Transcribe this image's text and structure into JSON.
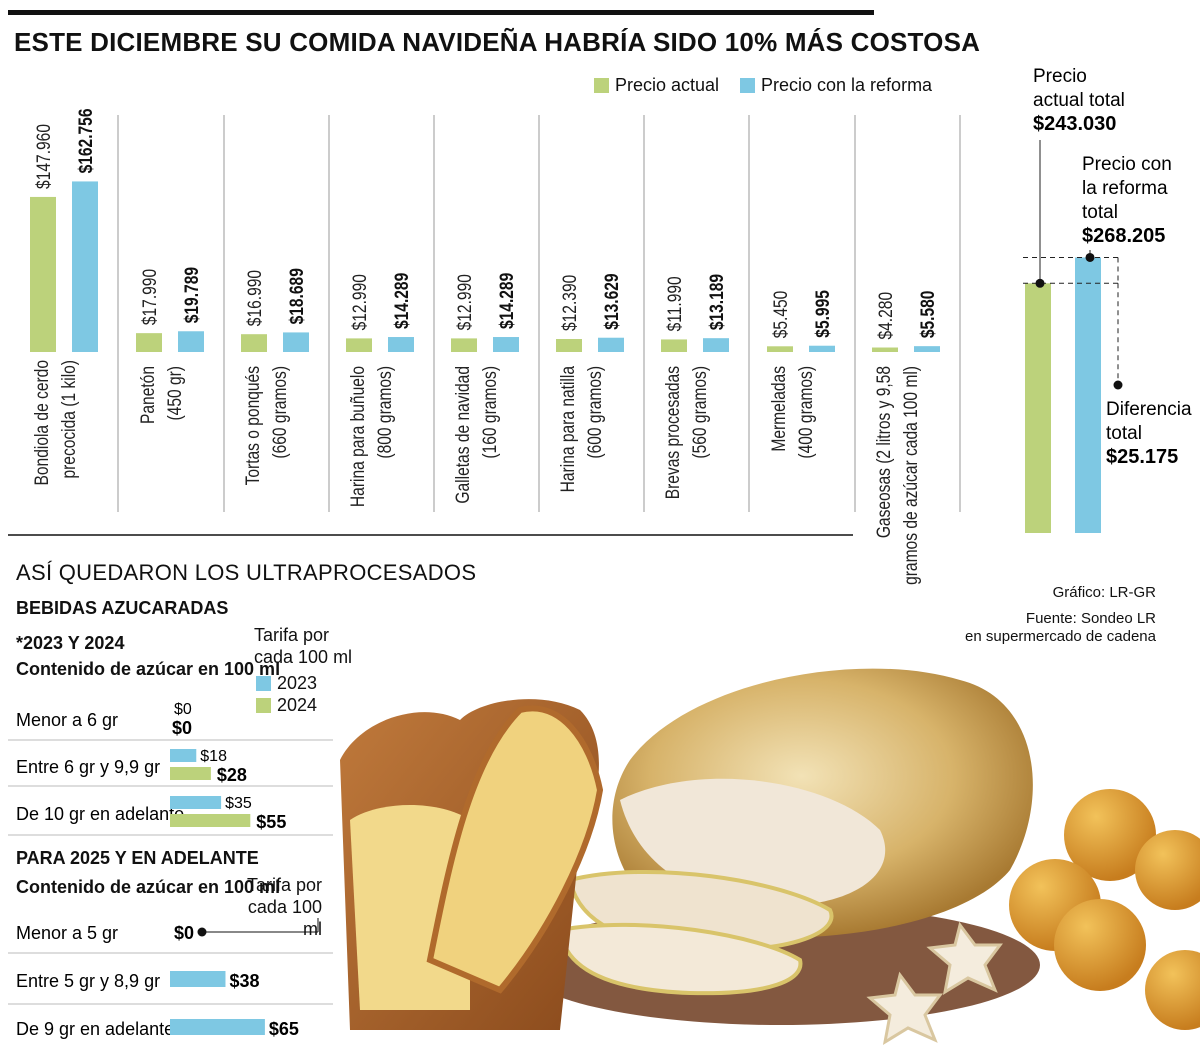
{
  "title": "ESTE DICIEMBRE SU COMIDA NAVIDEÑA HABRÍA SIDO 10% MÁS COSTOSA",
  "colors": {
    "actual": "#bcd27b",
    "reforma": "#7ec8e3",
    "ink": "#111111",
    "rule": "#999999"
  },
  "chart_data": {
    "type": "bar",
    "title": "ESTE DICIEMBRE SU COMIDA NAVIDEÑA HABRÍA SIDO 10% MÁS COSTOSA",
    "legend": [
      "Precio actual",
      "Precio con la reforma"
    ],
    "categories": [
      {
        "lines": [
          "Bondiola de cerdo",
          "precocida (1 kilo)"
        ]
      },
      {
        "lines": [
          "Panetón",
          "(450 gr)"
        ]
      },
      {
        "lines": [
          "Tortas o ponqués",
          "(660 gramos)"
        ]
      },
      {
        "lines": [
          "Harina para buñuelo",
          "(800 gramos)"
        ]
      },
      {
        "lines": [
          "Galletas de navidad",
          "(160 gramos)"
        ]
      },
      {
        "lines": [
          "Harina para natilla",
          "(600 gramos)"
        ]
      },
      {
        "lines": [
          "Brevas procesadas",
          "(560 gramos)"
        ]
      },
      {
        "lines": [
          "Mermeladas",
          "(400 gramos)"
        ]
      },
      {
        "lines": [
          "Gaseosas (2 litros y 9,58",
          "gramos de azúcar cada 100 ml)"
        ]
      }
    ],
    "series": [
      {
        "name": "Precio actual",
        "values": [
          147960,
          17990,
          16990,
          12990,
          12990,
          12390,
          11990,
          5450,
          4280
        ],
        "labels": [
          "$147.960",
          "$17.990",
          "$16.990",
          "$12.990",
          "$12.990",
          "$12.390",
          "$11.990",
          "$5.450",
          "$4.280"
        ]
      },
      {
        "name": "Precio con la reforma",
        "values": [
          162756,
          19789,
          18689,
          14289,
          14289,
          13629,
          13189,
          5995,
          5580
        ],
        "labels": [
          "$162.756",
          "$19.789",
          "$18.689",
          "$14.289",
          "$14.289",
          "$13.629",
          "$13.189",
          "$5.995",
          "$5.580"
        ]
      }
    ],
    "ylim": [
      0,
      250000
    ],
    "totals": {
      "actual": {
        "label_lines": [
          "Precio",
          "actual total"
        ],
        "value": 243030,
        "value_label": "$243.030"
      },
      "reforma": {
        "label_lines": [
          "Precio con",
          "la reforma",
          "total"
        ],
        "value": 268205,
        "value_label": "$268.205"
      },
      "difference": {
        "label_lines": [
          "Diferencia",
          "total"
        ],
        "value": 25175,
        "value_label": "$25.175"
      },
      "ylim": [
        0,
        292000
      ]
    }
  },
  "ultra": {
    "heading": "ASÍ QUEDARON LOS ULTRAPROCESADOS",
    "bebidas": "BEBIDAS AZUCARADAS",
    "period1": "*2023 Y 2024",
    "content_label": "Contenido de azúcar en 100 ml",
    "tarifa_lines": [
      "Tarifa por",
      "cada 100 ml"
    ],
    "legend": [
      "2023",
      "2024"
    ],
    "rows1": [
      {
        "label": "Menor a 6 gr",
        "v2023": 0,
        "v2024": 0,
        "t2023": "$0",
        "t2024": "$0"
      },
      {
        "label": "Entre 6 gr y 9,9 gr",
        "v2023": 18,
        "v2024": 28,
        "t2023": "$18",
        "t2024": "$28"
      },
      {
        "label": "De 10 gr en adelante",
        "v2023": 35,
        "v2024": 55,
        "t2023": "$35",
        "t2024": "$55"
      }
    ],
    "period2": "PARA 2025 Y EN ADELANTE",
    "content_label2": "Contenido de azúcar en 100 ml",
    "rows2": [
      {
        "label": "Menor a 5 gr",
        "value": 0,
        "text": "$0"
      },
      {
        "label": "Entre 5 gr y 8,9 gr",
        "value": 38,
        "text": "$38"
      },
      {
        "label": "De 9 gr en adelante",
        "value": 65,
        "text": "$65"
      }
    ]
  },
  "credits": {
    "grafico": "Gráfico: LR-GR",
    "fuente": "Fuente: Sondeo LR",
    "fuente2": "en supermercado de cadena"
  }
}
